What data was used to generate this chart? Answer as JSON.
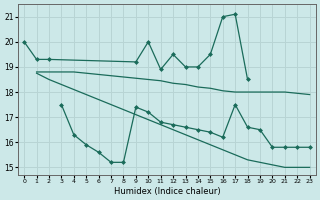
{
  "xlabel": "Humidex (Indice chaleur)",
  "bg_color": "#cce8e8",
  "grid_color": "#b8d4d4",
  "line_color": "#1a6b5a",
  "ylim": [
    14.7,
    21.5
  ],
  "xlim": [
    -0.5,
    23.5
  ],
  "yticks": [
    15,
    16,
    17,
    18,
    19,
    20,
    21
  ],
  "xticks": [
    0,
    1,
    2,
    3,
    4,
    5,
    6,
    7,
    8,
    9,
    10,
    11,
    12,
    13,
    14,
    15,
    16,
    17,
    18,
    19,
    20,
    21,
    22,
    23
  ],
  "line1_x": [
    0,
    1,
    2,
    9,
    10,
    11,
    12,
    13,
    14,
    15,
    16,
    17,
    18
  ],
  "line1_y": [
    20.0,
    19.3,
    19.3,
    19.2,
    20.0,
    18.9,
    19.5,
    19.0,
    19.0,
    19.5,
    21.0,
    21.1,
    18.5
  ],
  "line2_x": [
    1,
    2,
    3,
    4,
    5,
    6,
    7,
    8,
    9,
    10,
    11,
    12,
    13,
    14,
    15,
    16,
    17,
    18,
    19,
    20,
    21,
    22,
    23
  ],
  "line2_y": [
    18.8,
    18.8,
    18.8,
    18.8,
    18.75,
    18.7,
    18.65,
    18.6,
    18.55,
    18.5,
    18.45,
    18.35,
    18.3,
    18.2,
    18.15,
    18.05,
    18.0,
    18.0,
    18.0,
    18.0,
    18.0,
    17.95,
    17.9
  ],
  "line3_x": [
    1,
    2,
    3,
    4,
    5,
    6,
    7,
    8,
    9,
    10,
    11,
    12,
    13,
    14,
    15,
    16,
    17,
    18,
    19,
    20,
    21,
    22,
    23
  ],
  "line3_y": [
    18.75,
    18.5,
    18.3,
    18.1,
    17.9,
    17.7,
    17.5,
    17.3,
    17.1,
    16.9,
    16.7,
    16.5,
    16.3,
    16.1,
    15.9,
    15.7,
    15.5,
    15.3,
    15.2,
    15.1,
    15.0,
    15.0,
    15.0
  ],
  "line4_x": [
    3,
    4,
    5,
    6,
    7,
    8,
    9,
    10,
    11,
    12,
    13,
    14,
    15,
    16,
    17,
    18,
    19,
    20,
    21,
    22,
    23
  ],
  "line4_y": [
    17.5,
    16.3,
    15.9,
    15.6,
    15.2,
    15.2,
    17.4,
    17.2,
    16.8,
    16.7,
    16.6,
    16.5,
    16.4,
    16.2,
    17.5,
    16.6,
    16.5,
    15.8,
    15.8,
    15.8,
    15.8
  ]
}
